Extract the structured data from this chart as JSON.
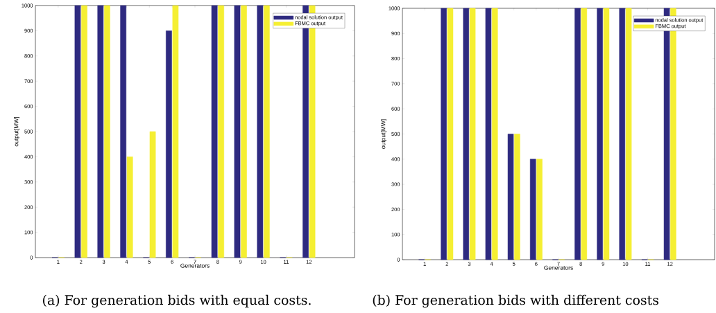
{
  "chart_data": [
    {
      "type": "bar",
      "x": [
        1,
        2,
        3,
        4,
        5,
        6,
        7,
        8,
        9,
        10,
        11,
        12
      ],
      "xlim": [
        0,
        14
      ],
      "xticks": [
        1,
        2,
        3,
        4,
        5,
        6,
        7,
        8,
        9,
        10,
        11,
        12
      ],
      "ylim": [
        0,
        1000
      ],
      "yticks": [
        0,
        100,
        200,
        300,
        400,
        500,
        600,
        700,
        800,
        900,
        1000
      ],
      "xlabel": "Generators",
      "ylabel": "output[MW]",
      "legend": "top right",
      "series": [
        {
          "name": "nodal solution output",
          "color": "#2e2a80",
          "values": [
            0,
            1000,
            1000,
            1000,
            0,
            900,
            0,
            1000,
            1000,
            1000,
            0,
            1000
          ]
        },
        {
          "name": "FBMC output",
          "color": "#f5ef32",
          "values": [
            0,
            1000,
            1000,
            400,
            500,
            1000,
            0,
            1000,
            1000,
            1000,
            0,
            1000
          ]
        }
      ],
      "annotations": [
        "(a) For generation bids with equal costs."
      ]
    },
    {
      "type": "bar",
      "x": [
        1,
        2,
        3,
        4,
        5,
        6,
        7,
        8,
        9,
        10,
        11,
        12
      ],
      "xlim": [
        0,
        14
      ],
      "xticks": [
        1,
        2,
        3,
        4,
        5,
        6,
        7,
        8,
        9,
        10,
        11,
        12
      ],
      "ylim": [
        0,
        1000
      ],
      "yticks": [
        0,
        100,
        200,
        300,
        400,
        500,
        600,
        700,
        800,
        900,
        1000
      ],
      "xlabel": "Generators",
      "ylabel": "output[MW]",
      "legend": "top right",
      "series": [
        {
          "name": "nodal solution output",
          "color": "#2e2a80",
          "values": [
            0,
            1000,
            1000,
            1000,
            500,
            400,
            0,
            1000,
            1000,
            1000,
            0,
            1000
          ]
        },
        {
          "name": "FBMC output",
          "color": "#f5ef32",
          "values": [
            0,
            1000,
            1000,
            1000,
            500,
            400,
            0,
            1000,
            1000,
            1000,
            0,
            1000
          ]
        }
      ],
      "annotations": [
        "(b) For generation bids with different costs"
      ]
    }
  ]
}
